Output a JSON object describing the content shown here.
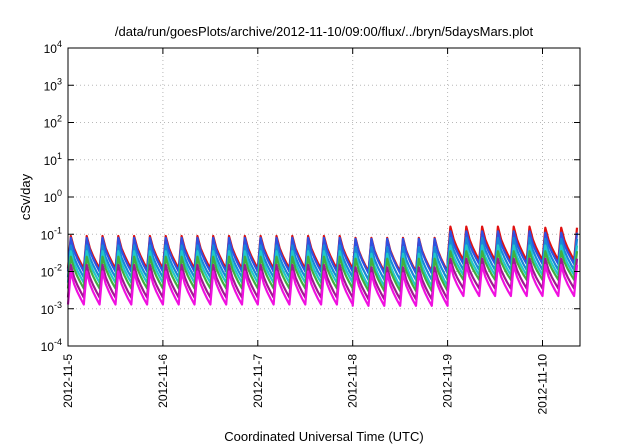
{
  "chart_data": {
    "type": "line",
    "title": "/data/run/goesPlots/archive/2012-11-10/09:00/flux/../bryn/5daysMars.plot",
    "xlabel": "Coordinated Universal Time (UTC)",
    "ylabel": "cSv/day",
    "yscale": "log",
    "ylim": [
      0.0001,
      10000
    ],
    "xlim": [
      "2012-11-05",
      "2012-11-10 09:00"
    ],
    "grid": true,
    "x_ticks": [
      "2012-11-5",
      "2012-11-6",
      "2012-11-7",
      "2012-11-8",
      "2012-11-9",
      "2012-11-10"
    ],
    "y_ticks": [
      {
        "value": 0.0001,
        "base": "10",
        "exp": "-4"
      },
      {
        "value": 0.001,
        "base": "10",
        "exp": "-3"
      },
      {
        "value": 0.01,
        "base": "10",
        "exp": "-2"
      },
      {
        "value": 0.1,
        "base": "10",
        "exp": "-1"
      },
      {
        "value": 1,
        "base": "10",
        "exp": "0"
      },
      {
        "value": 10,
        "base": "10",
        "exp": "1"
      },
      {
        "value": 100,
        "base": "10",
        "exp": "2"
      },
      {
        "value": 1000,
        "base": "10",
        "exp": "3"
      },
      {
        "value": 10000,
        "base": "10",
        "exp": "4"
      }
    ],
    "cycles_per_day": 6,
    "series": [
      {
        "color": "#e01010",
        "peak": [
          0.09,
          0.09,
          0.09,
          0.08,
          0.16,
          0.15
        ],
        "trough": [
          0.012,
          0.012,
          0.012,
          0.01,
          0.02,
          0.02
        ]
      },
      {
        "color": "#3050e0",
        "peak": [
          0.08,
          0.08,
          0.08,
          0.075,
          0.12,
          0.11
        ],
        "trough": [
          0.01,
          0.01,
          0.01,
          0.009,
          0.016,
          0.016
        ]
      },
      {
        "color": "#1888d8",
        "peak": [
          0.05,
          0.05,
          0.05,
          0.045,
          0.08,
          0.075
        ],
        "trough": [
          0.007,
          0.007,
          0.007,
          0.006,
          0.011,
          0.011
        ]
      },
      {
        "color": "#20c8c8",
        "peak": [
          0.035,
          0.035,
          0.035,
          0.03,
          0.05,
          0.05
        ],
        "trough": [
          0.005,
          0.005,
          0.005,
          0.004,
          0.008,
          0.008
        ]
      },
      {
        "color": "#40b040",
        "peak": [
          0.025,
          0.025,
          0.025,
          0.022,
          0.035,
          0.035
        ],
        "trough": [
          0.0035,
          0.0035,
          0.0035,
          0.003,
          0.006,
          0.006
        ]
      },
      {
        "color": "#a01890",
        "peak": [
          0.015,
          0.015,
          0.015,
          0.013,
          0.022,
          0.022
        ],
        "trough": [
          0.002,
          0.002,
          0.002,
          0.0018,
          0.0035,
          0.0035
        ]
      },
      {
        "color": "#f010e0",
        "peak": [
          0.01,
          0.01,
          0.01,
          0.009,
          0.015,
          0.015
        ],
        "trough": [
          0.0013,
          0.0013,
          0.0013,
          0.0012,
          0.0022,
          0.0022
        ]
      }
    ]
  }
}
